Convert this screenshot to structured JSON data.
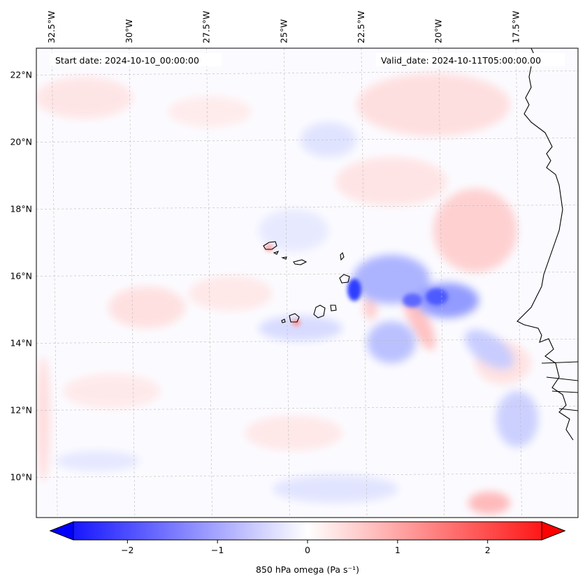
{
  "map": {
    "start_date_text": "Start date: 2024-10-10_00:00:00",
    "valid_date_text": "Valid_date: 2024-10-11T05:00:00.00",
    "lon_labels": [
      "32.5°W",
      "30°W",
      "27.5°W",
      "25°W",
      "22.5°W",
      "20°W",
      "17.5°W"
    ],
    "lat_labels": [
      "22°N",
      "20°N",
      "18°N",
      "16°N",
      "14°N",
      "12°N",
      "10°N"
    ],
    "lon_range": [
      -33,
      -15.5
    ],
    "lat_range": [
      8.8,
      22.8
    ]
  },
  "colorbar": {
    "label": "850 hPa omega (Pa s⁻¹)",
    "ticks": [
      "−2",
      "−1",
      "0",
      "1",
      "2"
    ],
    "tick_values": [
      -2,
      -1,
      0,
      1,
      2
    ],
    "range": [
      -2.6,
      2.6
    ],
    "colors": {
      "negative": "#0000ff",
      "zero": "#ffffff",
      "positive": "#ff0000"
    }
  }
}
